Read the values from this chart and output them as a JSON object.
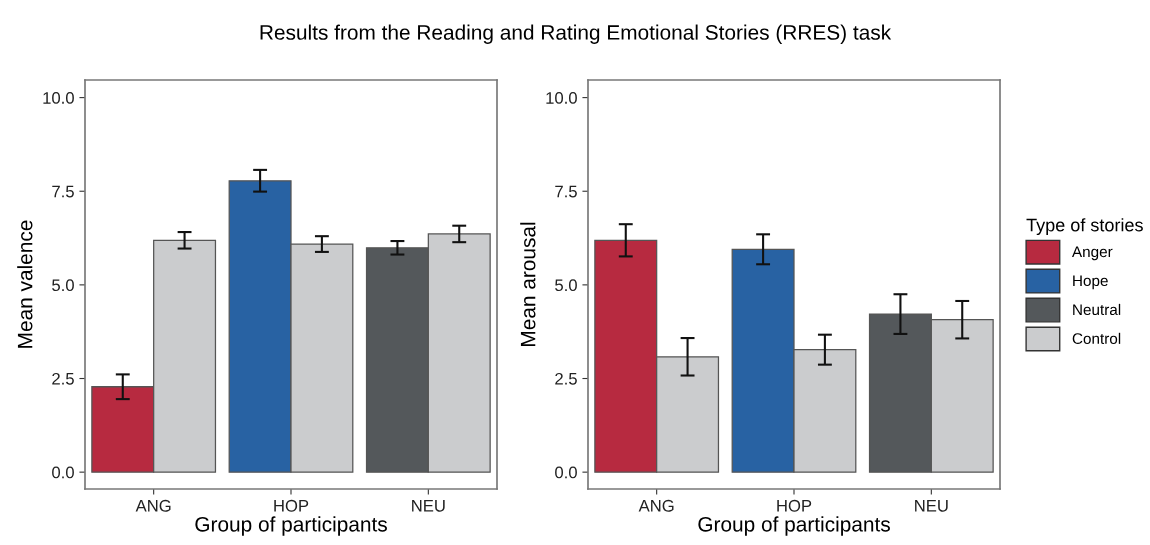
{
  "chart_data": [
    {
      "type": "bar",
      "title": "Results from the Reading and Rating Emotional Stories (RRES) task",
      "xlabel": "Group of participants",
      "ylabel": "Mean valence",
      "categories": [
        "ANG",
        "HOP",
        "NEU"
      ],
      "ylim": [
        -0.45,
        10.47
      ],
      "yticks": [
        {
          "value": 0,
          "label": "0.0"
        },
        {
          "value": 2.5,
          "label": "2.5"
        },
        {
          "value": 5,
          "label": "5.0"
        },
        {
          "value": 7.5,
          "label": "7.5"
        },
        {
          "value": 10,
          "label": "10.0"
        }
      ],
      "grid": false,
      "series": [
        {
          "color": "#b72a40",
          "values": [
            2.28,
            null,
            null
          ],
          "errors": [
            0.33,
            null,
            null
          ]
        },
        {
          "color": "#2862a3",
          "values": [
            null,
            7.78,
            null
          ],
          "errors": [
            null,
            0.29,
            null
          ]
        },
        {
          "color": "#54585b",
          "values": [
            null,
            null,
            5.99
          ],
          "errors": [
            null,
            null,
            0.18
          ]
        },
        {
          "color": "#cbccce",
          "values": [
            6.19,
            6.09,
            6.36
          ],
          "errors": [
            0.22,
            0.21,
            0.22
          ]
        }
      ]
    },
    {
      "type": "bar",
      "xlabel": "Group of participants",
      "ylabel": "Mean arousal",
      "legend_title": "Type of stories",
      "categories": [
        "ANG",
        "HOP",
        "NEU"
      ],
      "ylim": [
        -0.45,
        10.47
      ],
      "yticks": [
        {
          "value": 0,
          "label": "0.0"
        },
        {
          "value": 2.5,
          "label": "2.5"
        },
        {
          "value": 5,
          "label": "5.0"
        },
        {
          "value": 7.5,
          "label": "7.5"
        },
        {
          "value": 10,
          "label": "10.0"
        }
      ],
      "grid": false,
      "legend": "right",
      "series": [
        {
          "name": "Anger",
          "color": "#b72a40",
          "values": [
            6.19,
            null,
            null
          ],
          "errors": [
            0.43,
            null,
            null
          ]
        },
        {
          "name": "Hope",
          "color": "#2862a3",
          "values": [
            null,
            5.95,
            null
          ],
          "errors": [
            null,
            0.4,
            null
          ]
        },
        {
          "name": "Neutral",
          "color": "#54585b",
          "values": [
            null,
            null,
            4.22
          ],
          "errors": [
            null,
            null,
            0.53
          ]
        },
        {
          "name": "Control",
          "color": "#cbccce",
          "values": [
            3.08,
            3.27,
            4.07
          ],
          "errors": [
            0.5,
            0.4,
            0.5
          ]
        }
      ]
    }
  ]
}
